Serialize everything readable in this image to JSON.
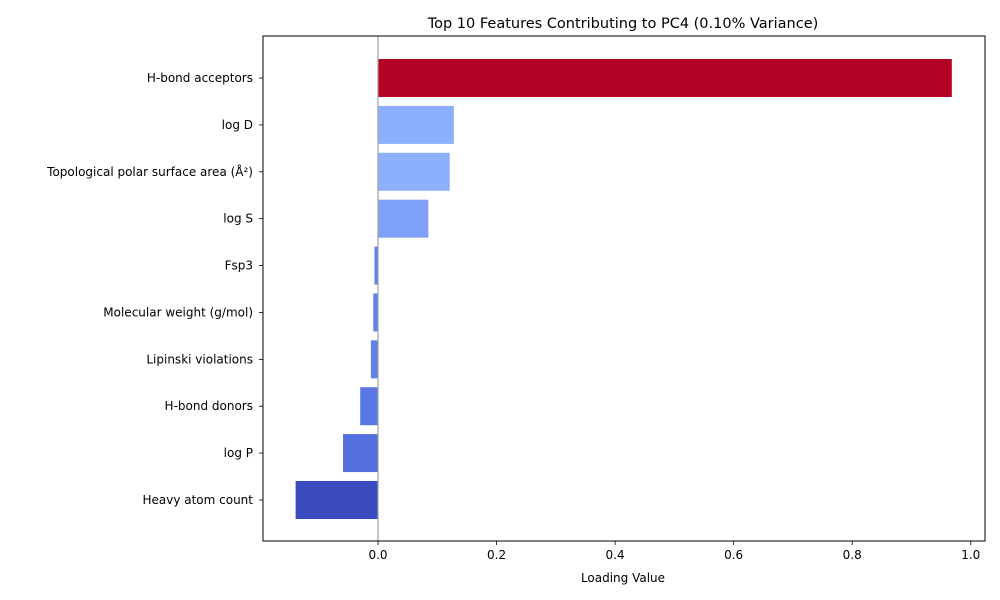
{
  "chart_data": {
    "type": "bar",
    "orientation": "horizontal",
    "title": "Top 10 Features Contributing to PC4 (0.10% Variance)",
    "xlabel": "Loading Value",
    "ylabel": "",
    "xlim": [
      -0.194,
      1.024
    ],
    "xticks": [
      0.0,
      0.2,
      0.4,
      0.6,
      0.8,
      1.0
    ],
    "xtick_labels": [
      "0.0",
      "0.2",
      "0.4",
      "0.6",
      "0.8",
      "1.0"
    ],
    "grid": false,
    "zero_line": true,
    "categories": [
      "H-bond acceptors",
      "log D",
      "Topological polar surface area (Å²)",
      "log S",
      "Fsp3",
      "Molecular weight (g/mol)",
      "Lipinski violations",
      "H-bond donors",
      "log P",
      "Heavy atom count"
    ],
    "values": [
      0.968,
      0.128,
      0.121,
      0.085,
      -0.006,
      -0.008,
      -0.012,
      -0.03,
      -0.059,
      -0.139
    ],
    "colors": [
      "#b40426",
      "#8caffe",
      "#8caffe",
      "#7fa0f9",
      "#6282ea",
      "#6282ea",
      "#6080e9",
      "#5a78e4",
      "#5470de",
      "#3b4cc0"
    ],
    "zero_line_color": "#a0a0a0"
  }
}
